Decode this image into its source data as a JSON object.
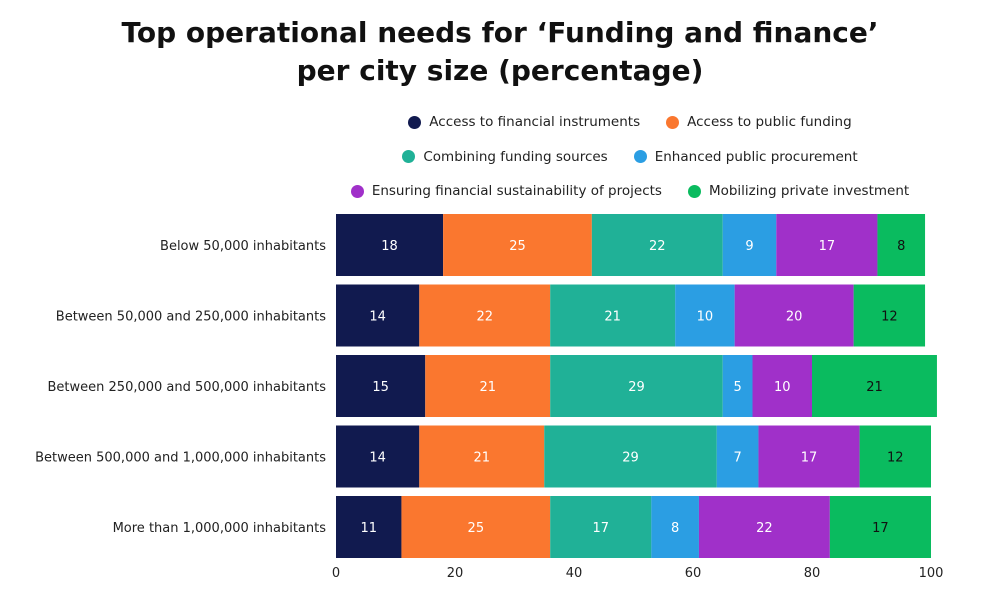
{
  "chart_data": {
    "type": "bar",
    "orientation": "horizontal",
    "stacked": true,
    "title_lines": [
      "Top operational needs for ‘Funding and finance’",
      "per city size (percentage)"
    ],
    "xlabel": "",
    "ylabel": "",
    "xlim": [
      0,
      100
    ],
    "xticks": [
      0,
      20,
      40,
      60,
      80,
      100
    ],
    "grid": false,
    "legend_placement": "top",
    "categories": [
      "Below 50,000 inhabitants",
      "Between 50,000 and 250,000 inhabitants",
      "Between 250,000 and 500,000 inhabitants",
      "Between 500,000 and 1,000,000 inhabitants",
      "More than 1,000,000 inhabitants"
    ],
    "series": [
      {
        "name": "Access to financial instruments",
        "color": "#111a4f",
        "values": [
          18,
          14,
          15,
          14,
          11
        ]
      },
      {
        "name": "Access to public funding",
        "color": "#fa772f",
        "values": [
          25,
          22,
          21,
          21,
          25
        ]
      },
      {
        "name": "Combining funding sources",
        "color": "#20b197",
        "values": [
          22,
          21,
          29,
          29,
          17
        ]
      },
      {
        "name": "Enhanced public procurement",
        "color": "#2b9ee3",
        "values": [
          9,
          10,
          5,
          7,
          8
        ]
      },
      {
        "name": "Ensuring financial sustainability of projects",
        "color": "#a030c9",
        "values": [
          17,
          20,
          10,
          17,
          22
        ]
      },
      {
        "name": "Mobilizing private investment",
        "color": "#0abb5f",
        "values": [
          8,
          12,
          21,
          12,
          17
        ]
      }
    ]
  }
}
